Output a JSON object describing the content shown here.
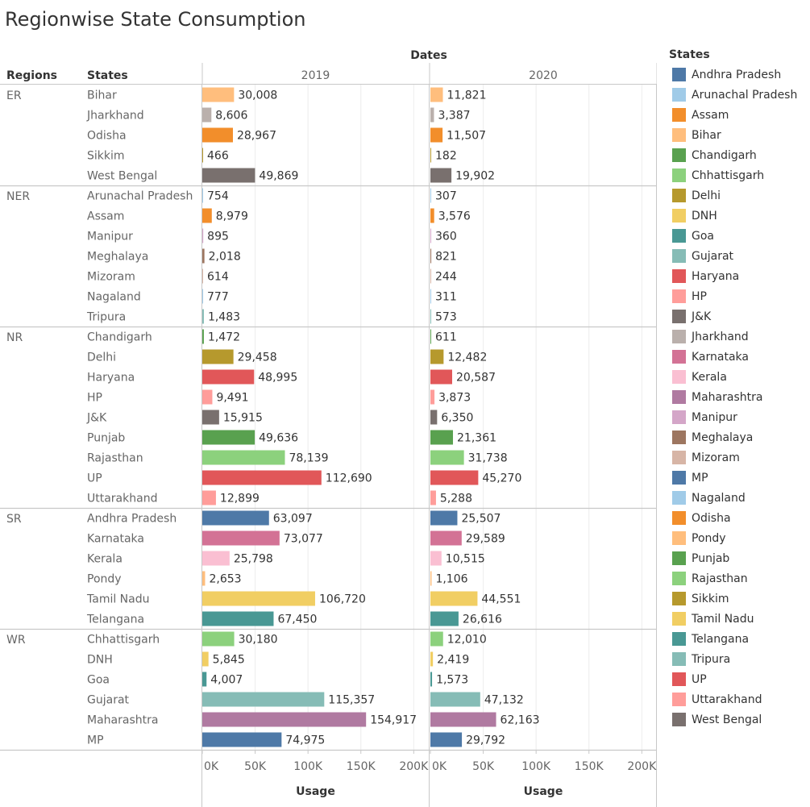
{
  "title": "Regionwise State Consumption",
  "colors": {
    "Andhra Pradesh": "#4e79a7",
    "Arunachal Pradesh": "#a0cbe8",
    "Assam": "#f28e2b",
    "Bihar": "#ffbe7d",
    "Chandigarh": "#59a14f",
    "Chhattisgarh": "#8cd17d",
    "Delhi": "#b6992d",
    "DNH": "#f1ce63",
    "Goa": "#499894",
    "Gujarat": "#86bcb6",
    "Haryana": "#e15759",
    "HP": "#ff9d9a",
    "J&K": "#79706e",
    "Jharkhand": "#bab0ac",
    "Karnataka": "#d37295",
    "Kerala": "#fabfd2",
    "Maharashtra": "#b07aa1",
    "Manipur": "#d4a6c8",
    "Meghalaya": "#9d7660",
    "Mizoram": "#d7b5a6",
    "MP": "#4e79a7",
    "Nagaland": "#a0cbe8",
    "Odisha": "#f28e2b",
    "Pondy": "#ffbe7d",
    "Punjab": "#59a14f",
    "Rajasthan": "#8cd17d",
    "Sikkim": "#b6992d",
    "Tamil Nadu": "#f1ce63",
    "Telangana": "#499894",
    "Tripura": "#86bcb6",
    "UP": "#e15759",
    "Uttarakhand": "#ff9d9a",
    "West Bengal": "#79706e"
  },
  "legend": {
    "title": "States",
    "items": [
      "Andhra Pradesh",
      "Arunachal Pradesh",
      "Assam",
      "Bihar",
      "Chandigarh",
      "Chhattisgarh",
      "Delhi",
      "DNH",
      "Goa",
      "Gujarat",
      "Haryana",
      "HP",
      "J&K",
      "Jharkhand",
      "Karnataka",
      "Kerala",
      "Maharashtra",
      "Manipur",
      "Meghalaya",
      "Mizoram",
      "MP",
      "Nagaland",
      "Odisha",
      "Pondy",
      "Punjab",
      "Rajasthan",
      "Sikkim",
      "Tamil Nadu",
      "Telangana",
      "Tripura",
      "UP",
      "Uttarakhand",
      "West Bengal"
    ]
  },
  "chart_data": {
    "type": "bar",
    "orientation": "horizontal",
    "title": "Regionwise State Consumption",
    "column_header": "Dates",
    "row_headers": [
      "Regions",
      "States"
    ],
    "xlabel": "Usage",
    "xlim": [
      0,
      215000
    ],
    "x_ticks": [
      0,
      50000,
      100000,
      150000,
      200000
    ],
    "x_tick_labels": [
      "0K",
      "50K",
      "100K",
      "150K",
      "200K"
    ],
    "grid": true,
    "legend_position": "right",
    "columns": [
      "2019",
      "2020"
    ],
    "regions": [
      {
        "name": "ER",
        "states": [
          {
            "name": "Bihar",
            "values": [
              30008,
              11821
            ],
            "labels": [
              "30,008",
              "11,821"
            ]
          },
          {
            "name": "Jharkhand",
            "values": [
              8606,
              3387
            ],
            "labels": [
              "8,606",
              "3,387"
            ]
          },
          {
            "name": "Odisha",
            "values": [
              28967,
              11507
            ],
            "labels": [
              "28,967",
              "11,507"
            ]
          },
          {
            "name": "Sikkim",
            "values": [
              466,
              182
            ],
            "labels": [
              "466",
              "182"
            ]
          },
          {
            "name": "West Bengal",
            "values": [
              49869,
              19902
            ],
            "labels": [
              "49,869",
              "19,902"
            ]
          }
        ]
      },
      {
        "name": "NER",
        "states": [
          {
            "name": "Arunachal Pradesh",
            "values": [
              754,
              307
            ],
            "labels": [
              "754",
              "307"
            ]
          },
          {
            "name": "Assam",
            "values": [
              8979,
              3576
            ],
            "labels": [
              "8,979",
              "3,576"
            ]
          },
          {
            "name": "Manipur",
            "values": [
              895,
              360
            ],
            "labels": [
              "895",
              "360"
            ]
          },
          {
            "name": "Meghalaya",
            "values": [
              2018,
              821
            ],
            "labels": [
              "2,018",
              "821"
            ]
          },
          {
            "name": "Mizoram",
            "values": [
              614,
              244
            ],
            "labels": [
              "614",
              "244"
            ]
          },
          {
            "name": "Nagaland",
            "values": [
              777,
              311
            ],
            "labels": [
              "777",
              "311"
            ]
          },
          {
            "name": "Tripura",
            "values": [
              1483,
              573
            ],
            "labels": [
              "1,483",
              "573"
            ]
          }
        ]
      },
      {
        "name": "NR",
        "states": [
          {
            "name": "Chandigarh",
            "values": [
              1472,
              611
            ],
            "labels": [
              "1,472",
              "611"
            ]
          },
          {
            "name": "Delhi",
            "values": [
              29458,
              12482
            ],
            "labels": [
              "29,458",
              "12,482"
            ]
          },
          {
            "name": "Haryana",
            "values": [
              48995,
              20587
            ],
            "labels": [
              "48,995",
              "20,587"
            ]
          },
          {
            "name": "HP",
            "values": [
              9491,
              3873
            ],
            "labels": [
              "9,491",
              "3,873"
            ]
          },
          {
            "name": "J&K",
            "values": [
              15915,
              6350
            ],
            "labels": [
              "15,915",
              "6,350"
            ]
          },
          {
            "name": "Punjab",
            "values": [
              49636,
              21361
            ],
            "labels": [
              "49,636",
              "21,361"
            ]
          },
          {
            "name": "Rajasthan",
            "values": [
              78139,
              31738
            ],
            "labels": [
              "78,139",
              "31,738"
            ]
          },
          {
            "name": "UP",
            "values": [
              112690,
              45270
            ],
            "labels": [
              "112,690",
              "45,270"
            ]
          },
          {
            "name": "Uttarakhand",
            "values": [
              12899,
              5288
            ],
            "labels": [
              "12,899",
              "5,288"
            ]
          }
        ]
      },
      {
        "name": "SR",
        "states": [
          {
            "name": "Andhra Pradesh",
            "values": [
              63097,
              25507
            ],
            "labels": [
              "63,097",
              "25,507"
            ]
          },
          {
            "name": "Karnataka",
            "values": [
              73077,
              29589
            ],
            "labels": [
              "73,077",
              "29,589"
            ]
          },
          {
            "name": "Kerala",
            "values": [
              25798,
              10515
            ],
            "labels": [
              "25,798",
              "10,515"
            ]
          },
          {
            "name": "Pondy",
            "values": [
              2653,
              1106
            ],
            "labels": [
              "2,653",
              "1,106"
            ]
          },
          {
            "name": "Tamil Nadu",
            "values": [
              106720,
              44551
            ],
            "labels": [
              "106,720",
              "44,551"
            ]
          },
          {
            "name": "Telangana",
            "values": [
              67450,
              26616
            ],
            "labels": [
              "67,450",
              "26,616"
            ]
          }
        ]
      },
      {
        "name": "WR",
        "states": [
          {
            "name": "Chhattisgarh",
            "values": [
              30180,
              12010
            ],
            "labels": [
              "30,180",
              "12,010"
            ]
          },
          {
            "name": "DNH",
            "values": [
              5845,
              2419
            ],
            "labels": [
              "5,845",
              "2,419"
            ]
          },
          {
            "name": "Goa",
            "values": [
              4007,
              1573
            ],
            "labels": [
              "4,007",
              "1,573"
            ]
          },
          {
            "name": "Gujarat",
            "values": [
              115357,
              47132
            ],
            "labels": [
              "115,357",
              "47,132"
            ]
          },
          {
            "name": "Maharashtra",
            "values": [
              154917,
              62163
            ],
            "labels": [
              "154,917",
              "62,163"
            ]
          },
          {
            "name": "MP",
            "values": [
              74975,
              29792
            ],
            "labels": [
              "74,975",
              "29,792"
            ]
          }
        ]
      }
    ]
  }
}
